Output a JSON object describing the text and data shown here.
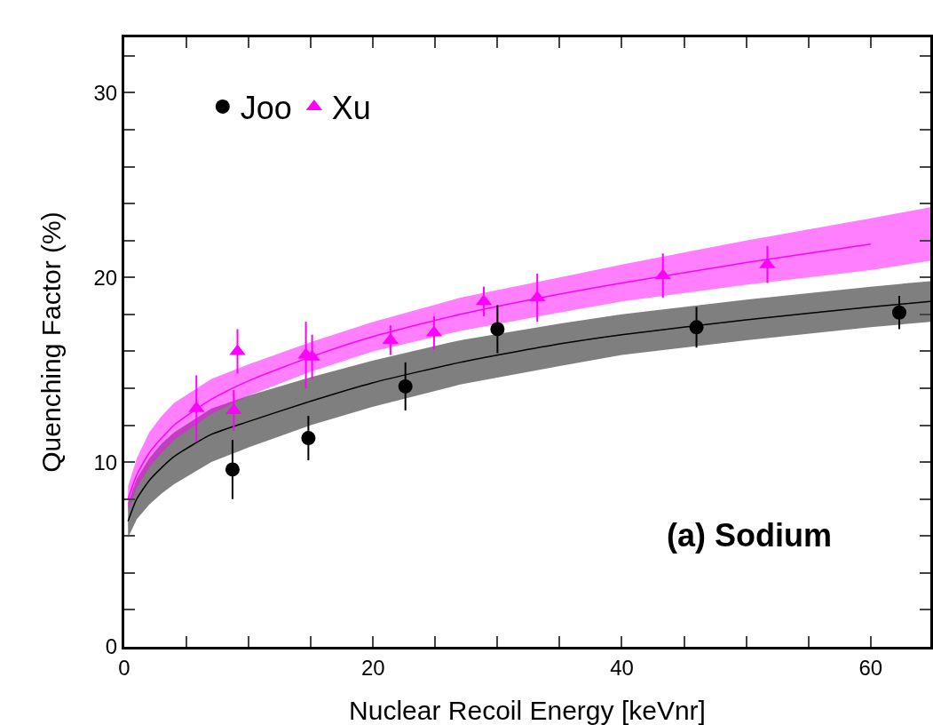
{
  "chart_data": {
    "type": "scatter",
    "xlabel": "Nuclear Recoil Energy [keVnr]",
    "ylabel": "Quenching Factor (%)",
    "xlim": [
      0,
      64.8
    ],
    "ylim": [
      0,
      33
    ],
    "xticks": [
      0,
      {
        "value": 5,
        "label": null
      },
      {
        "value": 10,
        "label": null
      },
      {
        "value": 15,
        "label": null
      },
      20,
      {
        "value": 25,
        "label": null
      },
      {
        "value": 30,
        "label": null
      },
      {
        "value": 35,
        "label": null
      },
      40,
      {
        "value": 45,
        "label": null
      },
      {
        "value": 50,
        "label": null
      },
      {
        "value": 55,
        "label": null
      },
      60
    ],
    "yticks": [
      0,
      {
        "value": 2,
        "label": null
      },
      {
        "value": 4,
        "label": null
      },
      {
        "value": 6,
        "label": null
      },
      {
        "value": 8,
        "label": null
      },
      10,
      {
        "value": 12,
        "label": null
      },
      {
        "value": 14,
        "label": null
      },
      {
        "value": 16,
        "label": null
      },
      {
        "value": 18,
        "label": null
      },
      20,
      {
        "value": 22,
        "label": null
      },
      {
        "value": 24,
        "label": null
      },
      {
        "value": 26,
        "label": null
      },
      {
        "value": 28,
        "label": null
      },
      30,
      {
        "value": 32,
        "label": null
      }
    ],
    "grid": false,
    "legend": "top left",
    "annotations": [
      "(a) Sodium"
    ],
    "series": [
      {
        "type": "line",
        "color": "#000000",
        "x": [
          0.3,
          1,
          2,
          3,
          4,
          7,
          10,
          15,
          20,
          27,
          35,
          40,
          50,
          60,
          64.8
        ],
        "values": [
          6.8,
          8.0,
          9.0,
          9.7,
          10.3,
          11.5,
          12.2,
          13.3,
          14.3,
          15.4,
          16.4,
          16.9,
          17.7,
          18.4,
          18.7
        ],
        "lower": [
          5.9,
          6.9,
          7.7,
          8.3,
          8.8,
          10.0,
          10.8,
          12.0,
          13.0,
          14.2,
          15.2,
          15.8,
          16.6,
          17.3,
          17.6
        ],
        "upper": [
          7.8,
          9.1,
          10.2,
          11.0,
          11.6,
          12.9,
          13.6,
          14.6,
          15.5,
          16.6,
          17.5,
          18.0,
          18.8,
          19.5,
          19.8
        ],
        "line_style": "solid",
        "marker": "none"
      },
      {
        "type": "line",
        "color": "#ff00ff",
        "x": [
          0.3,
          1,
          2,
          3,
          4,
          7,
          10,
          15,
          20,
          27,
          35,
          40,
          50,
          60,
          64.8
        ],
        "values": [
          8.0,
          9.3,
          10.5,
          11.3,
          12.0,
          13.4,
          14.4,
          15.7,
          16.8,
          18.0,
          19.1,
          19.7,
          20.8,
          21.8,
          null
        ],
        "lower": [
          7.4,
          8.6,
          9.7,
          10.5,
          11.2,
          12.6,
          13.6,
          14.9,
          16.0,
          17.1,
          18.1,
          18.7,
          19.6,
          20.4,
          20.9
        ],
        "upper": [
          8.7,
          10.2,
          11.6,
          12.5,
          13.2,
          14.5,
          15.3,
          16.5,
          17.6,
          18.9,
          20.0,
          20.7,
          22.0,
          23.2,
          23.8
        ],
        "line_style": "solid",
        "marker": "none"
      },
      {
        "name": "Joo",
        "color": "#000000",
        "marker": "circle",
        "x": [
          8.7,
          14.8,
          22.6,
          30.0,
          46.0,
          62.3
        ],
        "values": [
          9.6,
          11.3,
          14.1,
          17.2,
          17.3,
          18.1
        ],
        "errors": [
          1.6,
          1.2,
          1.3,
          1.3,
          1.1,
          0.9
        ]
      },
      {
        "name": "Xu",
        "color": "#ff00ff",
        "marker": "triangle",
        "x": [
          5.8,
          8.8,
          9.1,
          14.6,
          15.1,
          21.4,
          24.9,
          28.9,
          33.2,
          43.3,
          51.7
        ],
        "values": [
          12.9,
          12.8,
          16.0,
          15.8,
          15.7,
          16.6,
          17.0,
          18.7,
          18.9,
          20.1,
          20.7
        ],
        "errors": [
          1.8,
          1.1,
          1.2,
          1.8,
          1.2,
          0.8,
          0.9,
          0.8,
          1.3,
          1.2,
          1.0
        ]
      }
    ]
  }
}
